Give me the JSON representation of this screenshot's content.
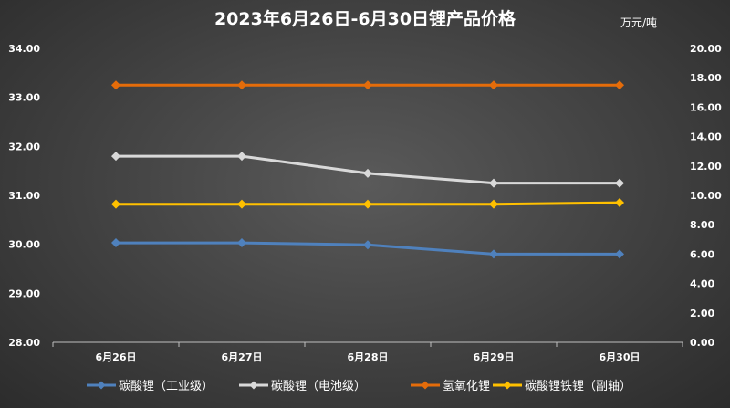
{
  "chart_data": {
    "type": "line",
    "title": "2023年6月26日-6月30日锂产品价格",
    "unit": "万元/吨",
    "categories": [
      "6月26日",
      "6月27日",
      "6月28日",
      "6月29日",
      "6月30日"
    ],
    "y_left": {
      "min": 28,
      "max": 34,
      "step": 1,
      "ticks": [
        "28.00",
        "29.00",
        "30.00",
        "31.00",
        "32.00",
        "33.00",
        "34.00"
      ]
    },
    "y_right": {
      "min": 0,
      "max": 20,
      "step": 2,
      "ticks": [
        "0.00",
        "2.00",
        "4.00",
        "6.00",
        "8.00",
        "10.00",
        "12.00",
        "14.00",
        "16.00",
        "18.00",
        "20.00"
      ]
    },
    "grid": false,
    "legend_position": "bottom",
    "series": [
      {
        "name": "碳酸锂（工业级）",
        "axis": "left",
        "color": "#4f81bd",
        "values": [
          30.03,
          30.03,
          29.99,
          29.8,
          29.8
        ]
      },
      {
        "name": "碳酸锂（电池级）",
        "axis": "left",
        "color": "#d9d9d9",
        "values": [
          31.8,
          31.8,
          31.45,
          31.25,
          31.25
        ]
      },
      {
        "name": "氢氧化锂",
        "axis": "left",
        "color": "#e46c0a",
        "values": [
          33.25,
          33.25,
          33.25,
          33.25,
          33.25
        ]
      },
      {
        "name": "碳酸锂铁锂（副轴）",
        "axis": "right",
        "color": "#ffc000",
        "values": [
          9.4,
          9.4,
          9.4,
          9.4,
          9.5
        ]
      }
    ]
  }
}
